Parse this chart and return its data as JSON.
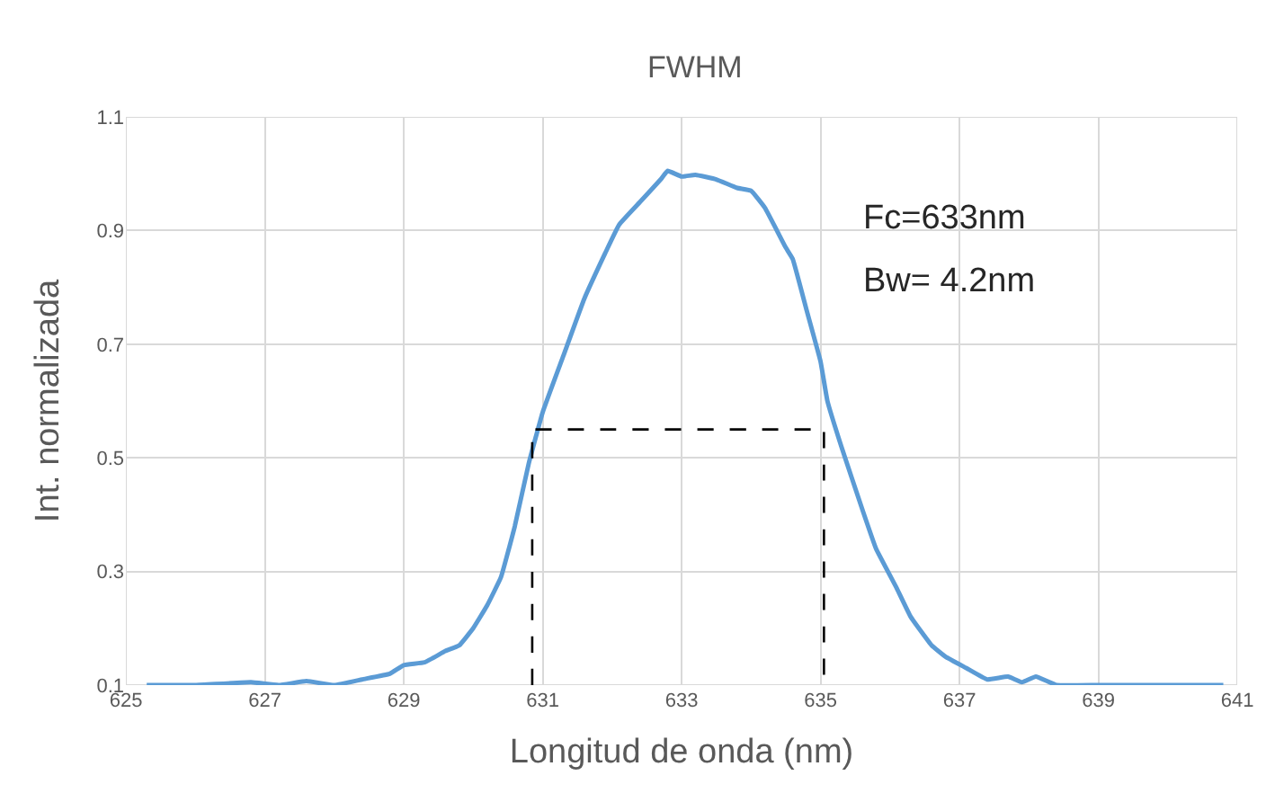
{
  "chart_data": {
    "type": "line",
    "title": "FWHM",
    "xlabel": "Longitud de onda (nm)",
    "ylabel": "Int. normalizada",
    "annotations": [
      "Fc=633nm",
      "Bw= 4.2nm"
    ],
    "xlim": [
      625,
      641
    ],
    "xticks": [
      625,
      627,
      629,
      631,
      633,
      635,
      637,
      639,
      641
    ],
    "ylim": [
      0.1,
      1.1
    ],
    "yticks": [
      0.1,
      0.3,
      0.5,
      0.7,
      0.9,
      1.1
    ],
    "grid": true,
    "series": [
      {
        "color": "#5b9bd5",
        "line_style": "solid",
        "x": [
          625.3,
          626,
          626.8,
          627.2,
          627.6,
          628,
          628.4,
          628.8,
          629,
          629.3,
          629.6,
          629.8,
          630,
          630.2,
          630.4,
          630.6,
          630.8,
          631,
          631.3,
          631.6,
          631.9,
          632.1,
          632.4,
          632.7,
          632.8,
          633,
          633.2,
          633.5,
          633.8,
          634,
          634.2,
          634.5,
          634.6,
          634.8,
          635,
          635.1,
          635.3,
          635.6,
          635.8,
          636.1,
          636.3,
          636.6,
          636.8,
          637.1,
          637.4,
          637.7,
          637.9,
          638.1,
          638.4,
          639,
          640,
          640.8
        ],
        "values": [
          0.1,
          0.1,
          0.105,
          0.1,
          0.107,
          0.1,
          0.11,
          0.12,
          0.135,
          0.14,
          0.16,
          0.17,
          0.2,
          0.24,
          0.29,
          0.38,
          0.49,
          0.58,
          0.68,
          0.78,
          0.86,
          0.91,
          0.95,
          0.99,
          1.005,
          0.995,
          0.998,
          0.99,
          0.975,
          0.97,
          0.94,
          0.87,
          0.85,
          0.76,
          0.67,
          0.6,
          0.52,
          0.41,
          0.34,
          0.27,
          0.22,
          0.17,
          0.15,
          0.13,
          0.11,
          0.115,
          0.105,
          0.115,
          0.1,
          0.1,
          0.1,
          0.1
        ]
      },
      {
        "color": "#000000",
        "line_style": "dashed",
        "x": [
          630.85,
          630.85,
          635.05,
          635.05
        ],
        "values": [
          0.1,
          0.55,
          0.55,
          0.1
        ]
      }
    ]
  }
}
